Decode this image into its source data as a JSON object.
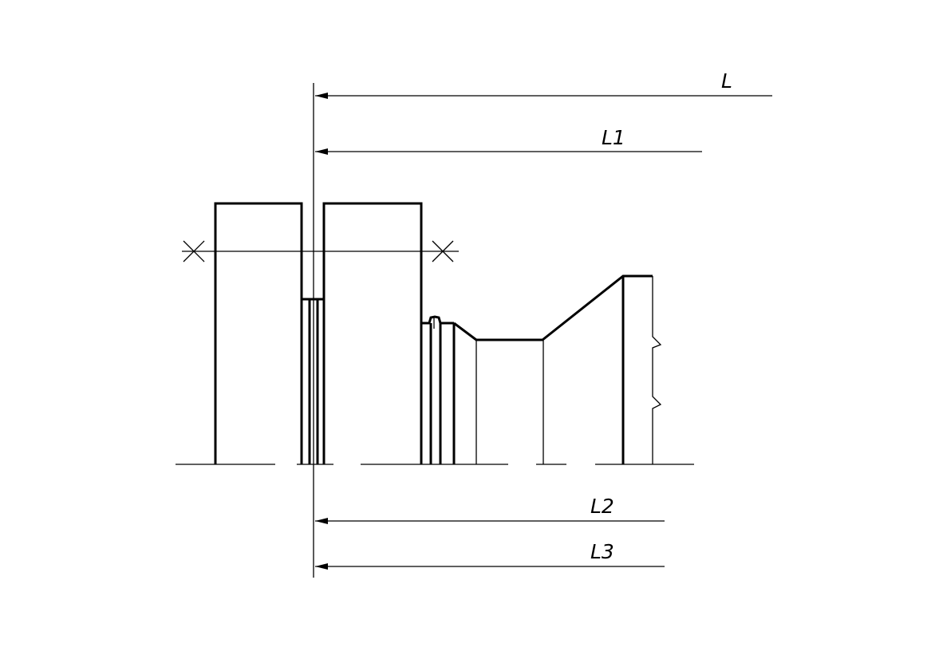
{
  "dimensions": {
    "L": "L",
    "L1": "L1",
    "L2": "L2",
    "L3": "L3"
  }
}
